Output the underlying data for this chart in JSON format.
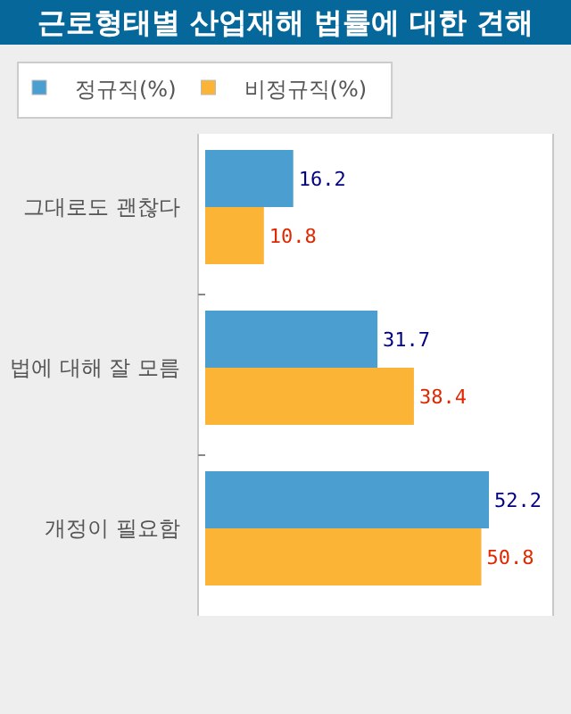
{
  "chart_data": {
    "type": "bar",
    "orientation": "horizontal",
    "title": "근로형태별 산업재해 법률에 대한 견해",
    "categories": [
      "그대로도 괜찮다",
      "법에 대해 잘 모름",
      "개정이 필요함"
    ],
    "series": [
      {
        "name": "정규직(%)",
        "color": "#4a9fd0",
        "values": [
          16.2,
          31.7,
          52.2
        ]
      },
      {
        "name": "비정규직(%)",
        "color": "#fbb436",
        "values": [
          10.8,
          38.4,
          50.8
        ]
      }
    ],
    "data_labels": true,
    "legend": "top"
  }
}
